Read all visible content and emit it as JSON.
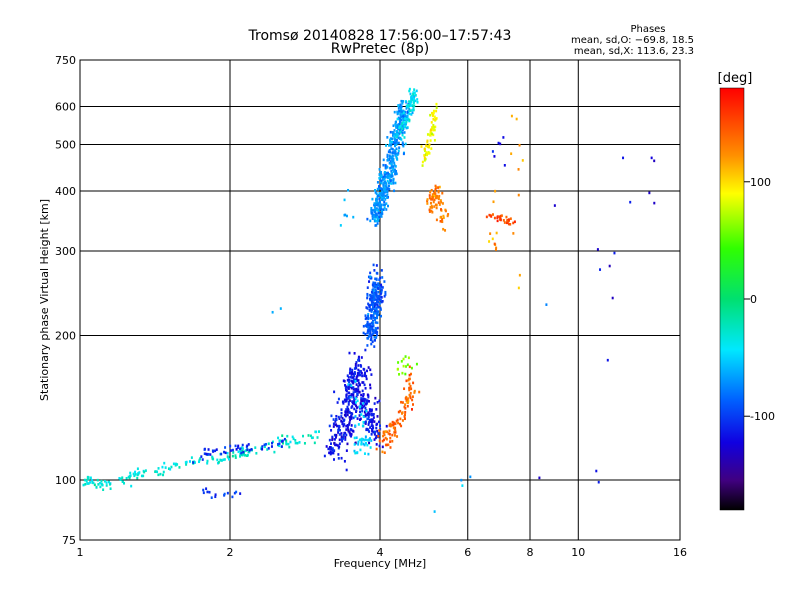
{
  "chart_data": {
    "type": "scatter",
    "title": "Tromsø 20140828 17:56:00–17:57:43",
    "subtitle": "RwPretec (8p)",
    "xlabel": "Frequency [MHz]",
    "ylabel": "Stationary phase Virtual Height [km]",
    "x_scale": "log",
    "y_scale": "log",
    "xlim": [
      1,
      16
    ],
    "ylim": [
      75,
      750
    ],
    "x_ticks": [
      1,
      2,
      4,
      6,
      8,
      10,
      16
    ],
    "y_ticks": [
      75,
      100,
      200,
      300,
      400,
      500,
      600,
      750
    ],
    "grid": true,
    "stats": {
      "heading": "Phases",
      "line_o": "mean, sd,O: −69.8, 18.5",
      "line_x": "mean, sd,X: 113.6, 23.3"
    },
    "colorbar": {
      "label": "[deg]",
      "range": [
        -180,
        180
      ],
      "ticks": [
        100,
        0,
        -100
      ],
      "position": "right"
    },
    "clusters": [
      {
        "name": "low E trace",
        "phase": -30,
        "pts": [
          [
            1.0,
            98
          ],
          [
            1.05,
            101
          ],
          [
            1.1,
            97
          ],
          [
            1.2,
            100
          ],
          [
            1.3,
            103
          ],
          [
            1.45,
            105
          ],
          [
            1.6,
            108
          ],
          [
            1.8,
            110
          ],
          [
            2.0,
            112
          ],
          [
            2.2,
            115
          ],
          [
            2.4,
            118
          ],
          [
            2.6,
            120
          ],
          [
            2.8,
            122
          ],
          [
            3.0,
            124
          ]
        ],
        "n": 180,
        "spread_x": 0.03,
        "spread_y": 0.025
      },
      {
        "name": "E trace blue",
        "phase": -110,
        "pts": [
          [
            1.7,
            112
          ],
          [
            2.0,
            116
          ],
          [
            2.3,
            117
          ],
          [
            2.6,
            119
          ]
        ],
        "n": 50,
        "spread_x": 0.05,
        "spread_y": 0.03
      },
      {
        "name": "E low dots",
        "phase": -100,
        "pts": [
          [
            1.75,
            95
          ],
          [
            1.9,
            93
          ],
          [
            2.1,
            94
          ]
        ],
        "n": 15,
        "spread_x": 0.03,
        "spread_y": 0.02
      },
      {
        "name": "F1 blue block",
        "phase": -115,
        "pts": [
          [
            3.2,
            115
          ],
          [
            3.4,
            130
          ],
          [
            3.5,
            150
          ],
          [
            3.6,
            170
          ],
          [
            3.8,
            140
          ],
          [
            3.9,
            125
          ]
        ],
        "n": 420,
        "spread_x": 0.05,
        "spread_y": 0.08
      },
      {
        "name": "F1 cyan",
        "phase": -50,
        "pts": [
          [
            3.6,
            120
          ],
          [
            3.8,
            118
          ],
          [
            3.5,
            160
          ]
        ],
        "n": 50,
        "spread_x": 0.04,
        "spread_y": 0.05
      },
      {
        "name": "F1 orange",
        "phase": 140,
        "pts": [
          [
            4.0,
            118
          ],
          [
            4.2,
            125
          ],
          [
            4.4,
            135
          ],
          [
            4.6,
            150
          ],
          [
            4.6,
            165
          ]
        ],
        "n": 100,
        "spread_x": 0.03,
        "spread_y": 0.05
      },
      {
        "name": "F1 yellow green",
        "phase": 60,
        "pts": [
          [
            4.4,
            170
          ],
          [
            4.6,
            180
          ]
        ],
        "n": 15,
        "spread_x": 0.03,
        "spread_y": 0.04
      },
      {
        "name": "F2 column",
        "phase": -90,
        "pts": [
          [
            3.8,
            200
          ],
          [
            3.9,
            230
          ],
          [
            3.95,
            260
          ]
        ],
        "n": 260,
        "spread_x": 0.035,
        "spread_y": 0.08
      },
      {
        "name": "F2 upper",
        "phase": -70,
        "pts": [
          [
            3.9,
            350
          ],
          [
            4.0,
            380
          ],
          [
            4.1,
            410
          ],
          [
            4.2,
            450
          ],
          [
            4.3,
            500
          ],
          [
            4.4,
            550
          ],
          [
            4.5,
            600
          ]
        ],
        "n": 460,
        "spread_x": 0.035,
        "spread_y": 0.05
      },
      {
        "name": "F2 cyan top",
        "phase": -40,
        "pts": [
          [
            4.4,
            520
          ],
          [
            4.6,
            600
          ],
          [
            4.7,
            640
          ]
        ],
        "n": 80,
        "spread_x": 0.025,
        "spread_y": 0.04
      },
      {
        "name": "X trace yellow",
        "phase": 90,
        "pts": [
          [
            4.9,
            460
          ],
          [
            5.0,
            500
          ],
          [
            5.1,
            550
          ],
          [
            5.2,
            600
          ]
        ],
        "n": 60,
        "spread_x": 0.02,
        "spread_y": 0.05
      },
      {
        "name": "X trace orange",
        "phase": 130,
        "pts": [
          [
            5.0,
            370
          ],
          [
            5.2,
            400
          ],
          [
            5.4,
            340
          ]
        ],
        "n": 70,
        "spread_x": 0.025,
        "spread_y": 0.04
      },
      {
        "name": "X right orange",
        "phase": 150,
        "pts": [
          [
            6.6,
            355
          ],
          [
            7.0,
            350
          ],
          [
            7.4,
            345
          ]
        ],
        "n": 30,
        "spread_x": 0.02,
        "spread_y": 0.015
      },
      {
        "name": "scatter right",
        "phase": 120,
        "pts": [
          [
            7.5,
            260
          ],
          [
            7.6,
            640
          ],
          [
            6.6,
            330
          ],
          [
            6.9,
            300
          ]
        ],
        "n": 20,
        "spread_x": 0.02,
        "spread_y": 0.06
      },
      {
        "name": "scatter blue right",
        "phase": -120,
        "pts": [
          [
            7.5,
            450
          ],
          [
            6.8,
            470
          ],
          [
            7.0,
            510
          ],
          [
            11.0,
            300
          ],
          [
            11.0,
            225
          ],
          [
            11.0,
            93
          ],
          [
            12.0,
            500
          ],
          [
            14.0,
            370
          ],
          [
            14.0,
            530
          ],
          [
            8.0,
            82
          ]
        ],
        "n": 22,
        "spread_x": 0.02,
        "spread_y": 0.04
      },
      {
        "name": "isolated",
        "phase": -60,
        "pts": [
          [
            1.6,
            275
          ],
          [
            2.5,
            225
          ],
          [
            3.2,
            270
          ],
          [
            3.3,
            330
          ],
          [
            3.5,
            400
          ],
          [
            4.6,
            78
          ],
          [
            6.0,
            105
          ],
          [
            11.0,
            420
          ]
        ],
        "n": 14,
        "spread_x": 0.02,
        "spread_y": 0.03
      }
    ]
  }
}
